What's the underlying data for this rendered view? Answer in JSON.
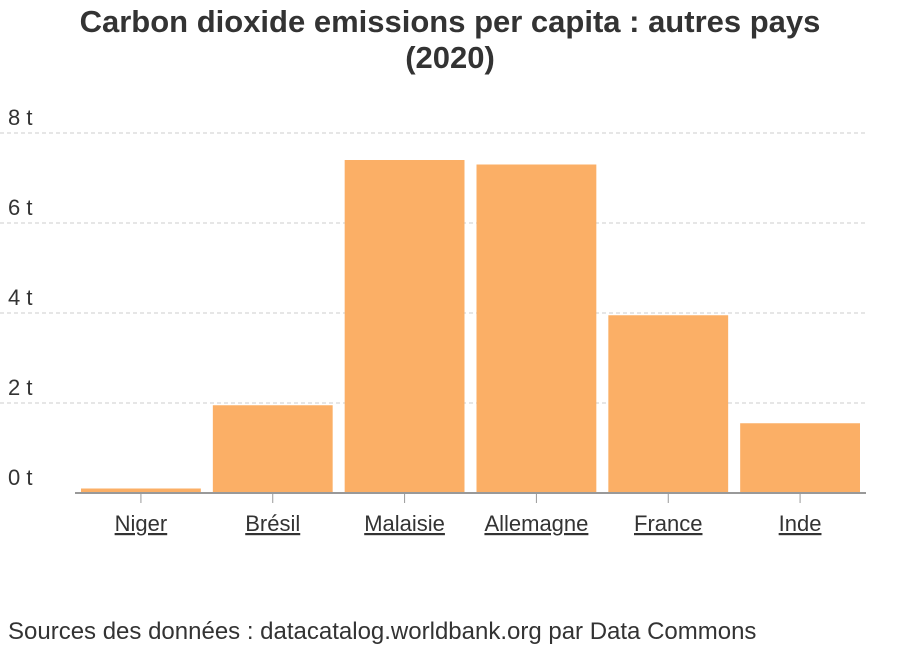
{
  "title_line1": "Carbon dioxide emissions per capita : autres pays",
  "title_line2": "(2020)",
  "source_text": "Sources des données : datacatalog.worldbank.org par Data Commons",
  "colors": {
    "bar": "#fbaf66",
    "grid": "#cccccc",
    "axis": "#999999",
    "text": "#333333"
  },
  "chart_data": {
    "type": "bar",
    "categories": [
      "Niger",
      "Brésil",
      "Malaisie",
      "Allemagne",
      "France",
      "Inde"
    ],
    "values": [
      0.1,
      1.95,
      7.4,
      7.3,
      3.95,
      1.55
    ],
    "ylim": [
      0,
      8
    ],
    "yticks": [
      0,
      2,
      4,
      6,
      8
    ],
    "ytick_labels": [
      "0 t",
      "2 t",
      "4 t",
      "6 t",
      "8 t"
    ],
    "grid": true,
    "xlabel": "",
    "ylabel": ""
  }
}
